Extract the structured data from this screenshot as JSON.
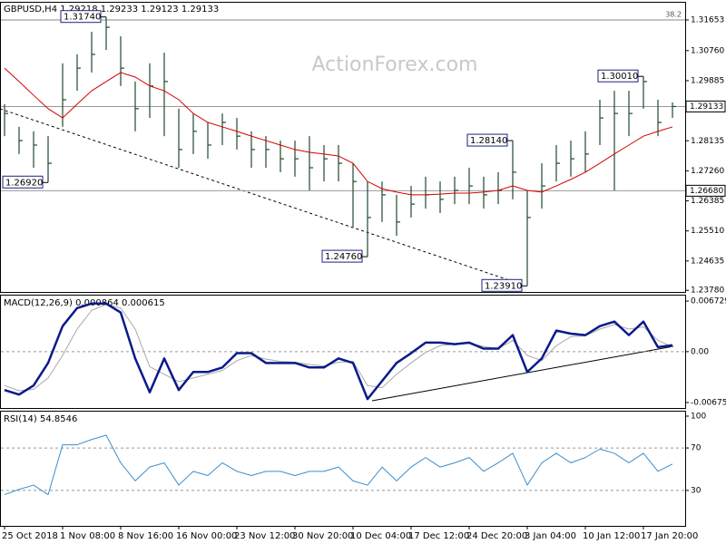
{
  "chart_data": [
    {
      "type": "ohlc",
      "title": "GBPUSD,H4  1.29218 1.29233 1.29123 1.29133",
      "watermark": "ActionForex.com",
      "categories": [
        "25 Oct 2018",
        null,
        null,
        null,
        "1 Nov 08:00",
        null,
        null,
        null,
        "8 Nov 16:00",
        null,
        null,
        null,
        "16 Nov 00:00",
        null,
        null,
        null,
        "23 Nov 12:00",
        null,
        null,
        null,
        "30 Nov 20:00",
        null,
        null,
        null,
        "10 Dec 04:00",
        null,
        null,
        null,
        "17 Dec 12:00",
        null,
        null,
        null,
        "24 Dec 20:00",
        null,
        null,
        null,
        "3 Jan 04:00",
        null,
        null,
        null,
        "10 Jan 12:00",
        null,
        null,
        null,
        "17 Jan 20:00",
        null,
        null
      ],
      "high": [
        1.292,
        1.2854,
        1.2841,
        1.2827,
        1.3039,
        1.3065,
        1.3131,
        1.3174,
        1.3118,
        1.2986,
        1.3039,
        1.307,
        1.2907,
        1.2893,
        1.2867,
        1.2893,
        1.288,
        1.2841,
        1.2827,
        1.2814,
        1.2814,
        1.2827,
        1.2801,
        1.2801,
        1.2748,
        1.2695,
        1.2695,
        1.2656,
        1.2682,
        1.2709,
        1.2695,
        1.2709,
        1.2735,
        1.2709,
        1.2722,
        1.2814,
        1.2669,
        1.2748,
        1.2801,
        1.2814,
        1.2841,
        1.2933,
        1.2959,
        1.2959,
        1.3001,
        1.2933,
        1.2925
      ],
      "low": [
        1.2827,
        1.2775,
        1.2735,
        1.2692,
        1.2854,
        1.2959,
        1.3012,
        1.3078,
        1.2973,
        1.2841,
        1.288,
        1.2827,
        1.2735,
        1.2775,
        1.2761,
        1.2801,
        1.2788,
        1.2735,
        1.2735,
        1.2722,
        1.2709,
        1.2669,
        1.2695,
        1.2695,
        1.2563,
        1.2476,
        1.2577,
        1.2537,
        1.259,
        1.2616,
        1.2603,
        1.2629,
        1.2629,
        1.2616,
        1.2629,
        1.2643,
        1.2391,
        1.2616,
        1.2695,
        1.2709,
        1.2722,
        1.2801,
        1.2669,
        1.2827,
        1.2907,
        1.2827,
        1.288
      ],
      "close": [
        1.2893,
        1.2814,
        1.2801,
        1.2748,
        1.2933,
        1.3025,
        1.3065,
        1.3144,
        1.3025,
        1.2907,
        1.2973,
        1.2986,
        1.2788,
        1.2841,
        1.2801,
        1.2867,
        1.2827,
        1.2788,
        1.2788,
        1.2761,
        1.2761,
        1.2735,
        1.2761,
        1.2748,
        1.2695,
        1.259,
        1.2656,
        1.2577,
        1.2629,
        1.2656,
        1.2643,
        1.2669,
        1.2682,
        1.2656,
        1.2669,
        1.2722,
        1.259,
        1.2682,
        1.2748,
        1.2761,
        1.2775,
        1.288,
        1.2893,
        1.2893,
        1.2986,
        1.2867,
        1.29133
      ],
      "color": "#1e4a2e",
      "ma": {
        "color": "#d40000",
        "values": [
          1.3025,
          1.2986,
          1.2946,
          1.2907,
          1.288,
          1.292,
          1.2959,
          1.2986,
          1.3012,
          1.2999,
          1.2973,
          1.2959,
          1.2933,
          1.2893,
          1.2867,
          1.2854,
          1.2841,
          1.2827,
          1.2814,
          1.2801,
          1.2788,
          1.278,
          1.2775,
          1.2769,
          1.2748,
          1.2695,
          1.2674,
          1.2664,
          1.2656,
          1.2656,
          1.2658,
          1.2661,
          1.2661,
          1.2664,
          1.2669,
          1.2682,
          1.2669,
          1.2664,
          1.2682,
          1.2701,
          1.2722,
          1.2748,
          1.2775,
          1.2801,
          1.2827,
          1.2841,
          1.2854
        ]
      },
      "ylim": [
        1.23733,
        1.32181
      ],
      "yticks": [
        1.31653,
        {
          "value": 1.3076,
          "label": "1.30760"
        },
        1.29885,
        1.28135,
        {
          "value": 1.2726,
          "label": "1.27260"
        },
        1.26385,
        {
          "value": 1.2551,
          "label": "1.25510"
        },
        1.24635,
        {
          "value": 1.2378,
          "label": "1.23780"
        }
      ],
      "fib_levels": [
        {
          "value": 1.31653,
          "label": "38.2"
        }
      ],
      "price_levels": [
        {
          "value": 1.2668,
          "label": "1.26680"
        },
        {
          "value": 1.29133,
          "label": "1.29133"
        }
      ],
      "annotations": [
        {
          "x": 7,
          "value": 1.3174,
          "label": "1.31740"
        },
        {
          "x": 3,
          "value": 1.2692,
          "label": "1.26920"
        },
        {
          "x": 25,
          "value": 1.2476,
          "label": "1.24760"
        },
        {
          "x": 36,
          "value": 1.2391,
          "label": "1.23910"
        },
        {
          "x": 35,
          "value": 1.2814,
          "label": "1.28140"
        },
        {
          "x": 44,
          "value": 1.3001,
          "label": "1.30010"
        }
      ]
    },
    {
      "type": "line",
      "title": "MACD(12,26,9) 0.000864 0.000615",
      "series": [
        {
          "color": "#0a1a8a",
          "values": [
            -0.0051,
            -0.0057,
            -0.0045,
            -0.0015,
            0.0034,
            0.0058,
            0.0064,
            0.0064,
            0.0052,
            -0.0009,
            -0.0054,
            -0.0009,
            -0.0051,
            -0.0027,
            -0.0027,
            -0.0021,
            -0.0002,
            -0.0002,
            -0.0015,
            -0.0015,
            -0.0015,
            -0.0021,
            -0.0021,
            -0.0009,
            -0.0015,
            -0.0063,
            -0.0039,
            -0.0015,
            -0.0002,
            0.0012,
            0.0012,
            0.001,
            0.0012,
            0.0004,
            0.0004,
            0.0022,
            -0.0027,
            -0.0009,
            0.0028,
            0.0024,
            0.0022,
            0.0034,
            0.004,
            0.0022,
            0.004,
            0.0006,
            0.000864
          ]
        },
        {
          "color": "#a8a8a8",
          "values": [
            -0.0045,
            -0.0052,
            -0.005,
            -0.0035,
            -0.0005,
            0.003,
            0.0055,
            0.0063,
            0.0058,
            0.003,
            -0.002,
            -0.003,
            -0.004,
            -0.0035,
            -0.003,
            -0.0025,
            -0.0012,
            -0.0005,
            -0.001,
            -0.0013,
            -0.0014,
            -0.0017,
            -0.0019,
            -0.0014,
            -0.0013,
            -0.0045,
            -0.0048,
            -0.003,
            -0.0015,
            -0.0001,
            0.0008,
            0.001,
            0.0011,
            0.0007,
            0.0004,
            0.0015,
            -0.0005,
            -0.0012,
            0.0008,
            0.002,
            0.0021,
            0.003,
            0.0036,
            0.003,
            0.0033,
            0.0015,
            0.000615
          ]
        }
      ],
      "ylim": [
        -0.00749,
        0.00758
      ],
      "yticks": [
        0.006729,
        {
          "value": 0,
          "label": "0.00"
        },
        -0.006758
      ],
      "levels": [
        0
      ]
    },
    {
      "type": "line",
      "title": "RSI(14) 54.8546",
      "series": [
        {
          "color": "#3a8fd0",
          "values": [
            26,
            31,
            35,
            26,
            73,
            73,
            78,
            82,
            56,
            39,
            52,
            56,
            35,
            48,
            44,
            56,
            48,
            44,
            48,
            48,
            44,
            48,
            48,
            52,
            39,
            35,
            52,
            39,
            52,
            61,
            52,
            56,
            61,
            48,
            56,
            65,
            35,
            56,
            65,
            56,
            61,
            69,
            65,
            56,
            65,
            48,
            54.8546
          ]
        }
      ],
      "ylim": [
        -3.4,
        105.1
      ],
      "yticks": [
        100,
        70,
        30
      ],
      "levels": [
        70,
        30
      ]
    }
  ]
}
